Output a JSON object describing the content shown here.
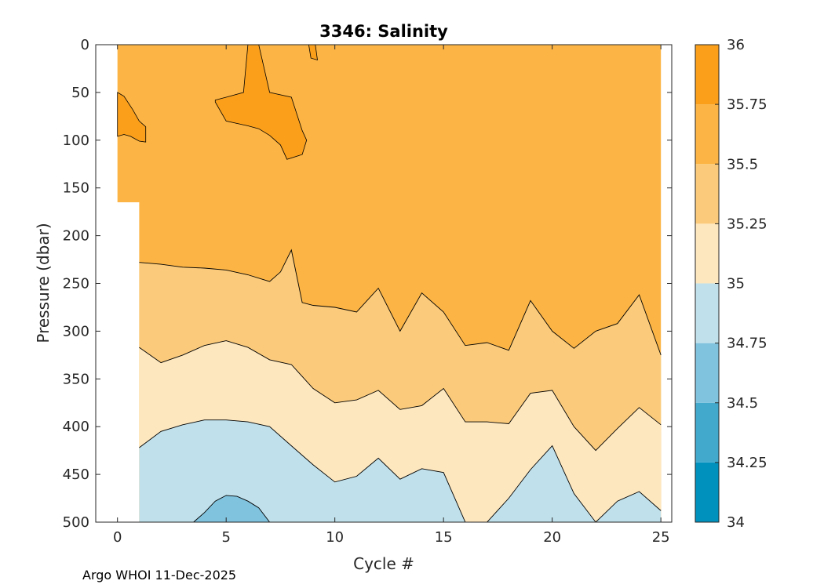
{
  "chart_data": {
    "type": "contour",
    "title": "3346:  Salinity",
    "xlabel": "Cycle #",
    "ylabel": "Pressure (dbar)",
    "xlim": [
      -1,
      25.5
    ],
    "ylim": [
      500,
      0
    ],
    "y_reversed": true,
    "xticks": [
      0,
      5,
      10,
      15,
      20,
      25
    ],
    "yticks": [
      0,
      50,
      100,
      150,
      200,
      250,
      300,
      350,
      400,
      450,
      500
    ],
    "colorbar": {
      "levels": [
        34,
        34.25,
        34.5,
        34.75,
        35,
        35.25,
        35.5,
        35.75,
        36
      ],
      "tick_labels": [
        "34",
        "34.25",
        "34.5",
        "34.75",
        "35",
        "35.25",
        "35.5",
        "35.75",
        "36"
      ],
      "colors": [
        "#0092bd",
        "#42a9cd",
        "#80c3de",
        "#c0e1ec",
        "#fde7bf",
        "#fbcb7b",
        "#fcb444",
        "#fb9f1a"
      ]
    },
    "cycle_0_data_depth": 165,
    "contours": {
      "35.5_boundary": {
        "x": [
          1,
          2,
          3,
          4,
          5,
          6,
          7,
          7.5,
          8,
          8.5,
          9,
          10,
          11,
          12,
          13,
          14,
          15,
          16,
          17,
          18,
          19,
          20,
          21,
          22,
          23,
          24,
          25
        ],
        "y": [
          228,
          230,
          233,
          234,
          236,
          241,
          248,
          238,
          215,
          270,
          273,
          275,
          280,
          255,
          300,
          260,
          280,
          315,
          312,
          320,
          268,
          300,
          318,
          300,
          292,
          262,
          325
        ]
      },
      "35.25_boundary": {
        "x": [
          1,
          2,
          3,
          4,
          5,
          6,
          7,
          8,
          9,
          10,
          11,
          12,
          13,
          14,
          15,
          16,
          17,
          18,
          19,
          20,
          21,
          22,
          23,
          24,
          25
        ],
        "y": [
          317,
          333,
          325,
          315,
          310,
          317,
          330,
          335,
          360,
          375,
          372,
          362,
          382,
          378,
          360,
          395,
          395,
          397,
          365,
          362,
          400,
          425,
          402,
          380,
          398
        ]
      },
      "35.0_boundary": {
        "x": [
          1,
          2,
          3,
          4,
          5,
          6,
          7,
          8,
          9,
          10,
          11,
          12,
          13,
          14,
          15,
          16,
          17,
          18,
          19,
          20,
          21,
          22,
          23,
          24,
          25
        ],
        "y": [
          422,
          405,
          398,
          393,
          393,
          395,
          400,
          420,
          440,
          458,
          452,
          433,
          455,
          444,
          448,
          500,
          500,
          475,
          445,
          420,
          470,
          500,
          478,
          468,
          488
        ]
      },
      "34.75_pocket": {
        "x": [
          3.5,
          4,
          4.5,
          5,
          5.5,
          6,
          6.5,
          7
        ],
        "y": [
          500,
          490,
          478,
          472,
          473,
          478,
          485,
          500
        ]
      },
      "35.75_patches": [
        {
          "x": [
            0,
            0.3,
            0.7,
            1,
            1.3,
            1.3,
            1,
            0.6,
            0.3,
            0
          ],
          "y": [
            50,
            54,
            68,
            80,
            86,
            102,
            101,
            96,
            94,
            96
          ]
        },
        {
          "x": [
            4.5,
            5,
            5.8,
            6,
            6.5,
            7,
            8,
            8.5,
            8.7,
            8.5,
            7.8,
            7.5,
            7,
            6.5,
            6,
            5,
            4.5
          ],
          "y": [
            58,
            55,
            50,
            0,
            0,
            50,
            55,
            90,
            100,
            115,
            120,
            105,
            95,
            88,
            85,
            80,
            60
          ]
        },
        {
          "x": [
            8.8,
            9.1,
            9.2,
            8.9
          ],
          "y": [
            0,
            0,
            16,
            14
          ]
        }
      ]
    }
  },
  "footer": {
    "credit": "Argo WHOI 11-Dec-2025"
  }
}
